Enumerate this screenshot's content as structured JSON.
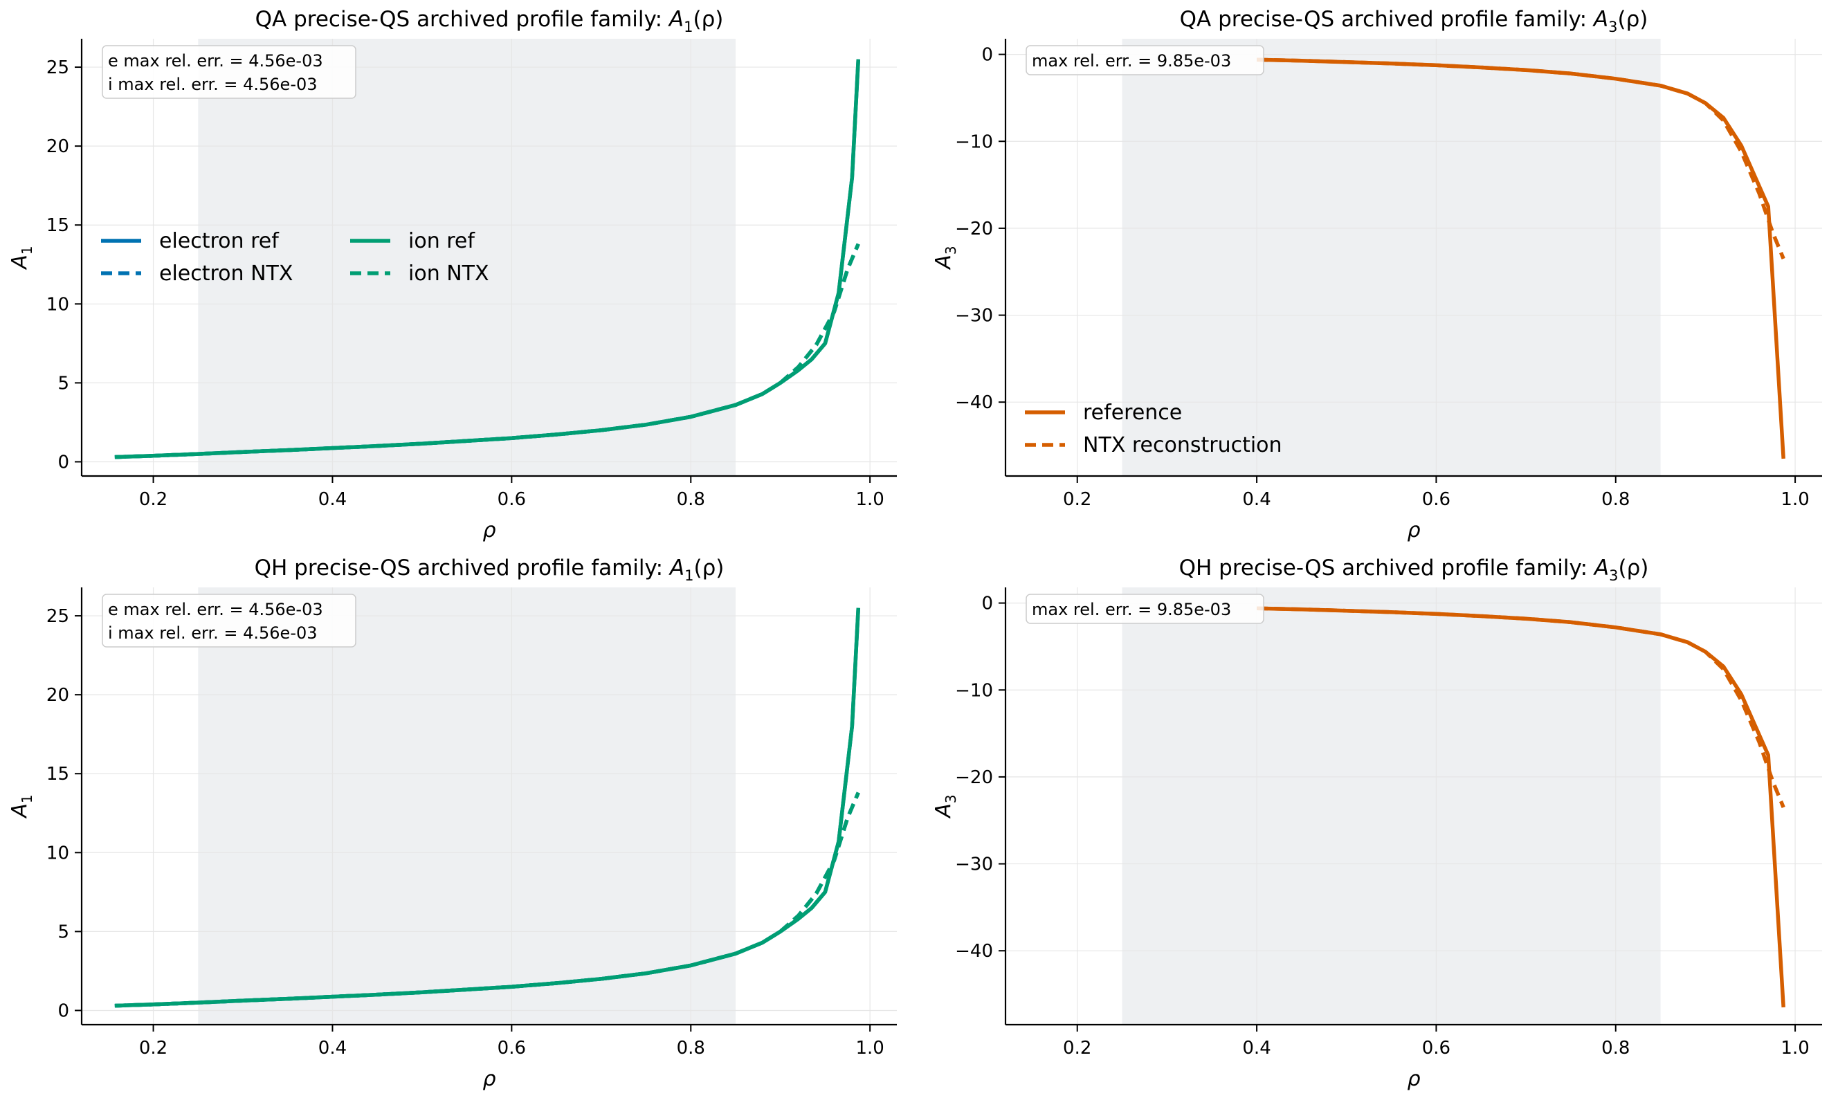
{
  "colors": {
    "electron": "#0072b2",
    "ion": "#009e73",
    "a3": "#d55e00",
    "span": "#eef0f2",
    "grid": "#e6e6e6",
    "axis": "#000000"
  },
  "chart_data": [
    {
      "type": "line",
      "title_main": "QA precise-QS archived profile family: ",
      "title_math": "A",
      "title_sub": "1",
      "title_tail": "(ρ)",
      "xlabel": "ρ",
      "ylabel": "A",
      "ylabel_sub": "1",
      "xlim": [
        0.12,
        1.03
      ],
      "ylim": [
        -0.9,
        26.8
      ],
      "xticks": [
        0.2,
        0.4,
        0.6,
        0.8,
        1.0
      ],
      "xtick_labels": [
        "0.2",
        "0.4",
        "0.6",
        "0.8",
        "1.0"
      ],
      "yticks": [
        0,
        5,
        10,
        15,
        20,
        25
      ],
      "ytick_labels": [
        "0",
        "5",
        "10",
        "15",
        "20",
        "25"
      ],
      "shaded_x": [
        0.25,
        0.85
      ],
      "grid": true,
      "annotation": [
        "e max rel. err. = 4.56e-03",
        "i max rel. err. = 4.56e-03"
      ],
      "legend": {
        "placement": "center-left",
        "entries": [
          {
            "label": "electron ref",
            "series": "electron ref"
          },
          {
            "label": "electron NTX",
            "series": "electron NTX"
          },
          {
            "label": "ion ref",
            "series": "ion ref"
          },
          {
            "label": "ion NTX",
            "series": "ion NTX"
          }
        ]
      },
      "series": [
        {
          "name": "electron ref",
          "color": "#0072b2",
          "dash": false,
          "x": [
            0.157,
            0.2,
            0.25,
            0.3,
            0.35,
            0.4,
            0.45,
            0.5,
            0.55,
            0.6,
            0.65,
            0.7,
            0.75,
            0.8,
            0.85,
            0.88,
            0.9,
            0.92,
            0.935,
            0.95,
            0.965,
            0.98,
            0.987
          ],
          "y": [
            0.3,
            0.38,
            0.5,
            0.62,
            0.74,
            0.87,
            1.0,
            1.15,
            1.32,
            1.5,
            1.73,
            2.0,
            2.35,
            2.85,
            3.6,
            4.3,
            5.0,
            5.8,
            6.5,
            7.5,
            10.7,
            18.0,
            25.5
          ]
        },
        {
          "name": "electron NTX",
          "color": "#0072b2",
          "dash": true,
          "x": [
            0.157,
            0.2,
            0.25,
            0.3,
            0.35,
            0.4,
            0.45,
            0.5,
            0.55,
            0.6,
            0.65,
            0.7,
            0.75,
            0.8,
            0.85,
            0.88,
            0.9,
            0.92,
            0.94,
            0.96,
            0.975,
            0.987
          ],
          "y": [
            0.3,
            0.38,
            0.5,
            0.62,
            0.74,
            0.87,
            1.0,
            1.15,
            1.32,
            1.5,
            1.73,
            2.0,
            2.35,
            2.85,
            3.6,
            4.3,
            5.0,
            6.0,
            7.4,
            9.5,
            12.2,
            13.8
          ]
        },
        {
          "name": "ion ref",
          "color": "#009e73",
          "dash": false,
          "x": [
            0.157,
            0.2,
            0.25,
            0.3,
            0.35,
            0.4,
            0.45,
            0.5,
            0.55,
            0.6,
            0.65,
            0.7,
            0.75,
            0.8,
            0.85,
            0.88,
            0.9,
            0.92,
            0.935,
            0.95,
            0.965,
            0.98,
            0.987
          ],
          "y": [
            0.3,
            0.38,
            0.5,
            0.62,
            0.74,
            0.87,
            1.0,
            1.15,
            1.32,
            1.5,
            1.73,
            2.0,
            2.35,
            2.85,
            3.6,
            4.3,
            5.0,
            5.8,
            6.5,
            7.5,
            10.7,
            18.0,
            25.5
          ]
        },
        {
          "name": "ion NTX",
          "color": "#009e73",
          "dash": true,
          "x": [
            0.157,
            0.2,
            0.25,
            0.3,
            0.35,
            0.4,
            0.45,
            0.5,
            0.55,
            0.6,
            0.65,
            0.7,
            0.75,
            0.8,
            0.85,
            0.88,
            0.9,
            0.92,
            0.94,
            0.96,
            0.975,
            0.987
          ],
          "y": [
            0.3,
            0.38,
            0.5,
            0.62,
            0.74,
            0.87,
            1.0,
            1.15,
            1.32,
            1.5,
            1.73,
            2.0,
            2.35,
            2.85,
            3.6,
            4.3,
            5.0,
            6.0,
            7.4,
            9.5,
            12.2,
            13.8
          ]
        }
      ]
    },
    {
      "type": "line",
      "title_main": "QA precise-QS archived profile family: ",
      "title_math": "A",
      "title_sub": "3",
      "title_tail": "(ρ)",
      "xlabel": "ρ",
      "ylabel": "A",
      "ylabel_sub": "3",
      "xlim": [
        0.12,
        1.03
      ],
      "ylim": [
        -48.5,
        1.8
      ],
      "xticks": [
        0.2,
        0.4,
        0.6,
        0.8,
        1.0
      ],
      "xtick_labels": [
        "0.2",
        "0.4",
        "0.6",
        "0.8",
        "1.0"
      ],
      "yticks": [
        0,
        -10,
        -20,
        -30,
        -40
      ],
      "ytick_labels": [
        "0",
        "−10",
        "−20",
        "−30",
        "−40"
      ],
      "shaded_x": [
        0.25,
        0.85
      ],
      "grid": true,
      "annotation": [
        "max rel. err. = 9.85e-03"
      ],
      "legend": {
        "placement": "lower-left",
        "entries": [
          {
            "label": "reference",
            "series": "reference"
          },
          {
            "label": "NTX reconstruction",
            "series": "NTX reconstruction"
          }
        ]
      },
      "series": [
        {
          "name": "reference",
          "color": "#d55e00",
          "dash": false,
          "x": [
            0.4,
            0.45,
            0.5,
            0.55,
            0.6,
            0.65,
            0.7,
            0.75,
            0.8,
            0.85,
            0.88,
            0.9,
            0.92,
            0.94,
            0.955,
            0.97,
            0.987
          ],
          "y": [
            -0.6,
            -0.72,
            -0.88,
            -1.05,
            -1.25,
            -1.5,
            -1.8,
            -2.2,
            -2.8,
            -3.6,
            -4.5,
            -5.6,
            -7.3,
            -10.5,
            -14.0,
            -17.5,
            -46.5
          ]
        },
        {
          "name": "NTX reconstruction",
          "color": "#d55e00",
          "dash": true,
          "x": [
            0.4,
            0.45,
            0.5,
            0.55,
            0.6,
            0.65,
            0.7,
            0.75,
            0.8,
            0.85,
            0.88,
            0.9,
            0.92,
            0.94,
            0.96,
            0.975,
            0.987
          ],
          "y": [
            -0.6,
            -0.72,
            -0.88,
            -1.05,
            -1.25,
            -1.5,
            -1.8,
            -2.2,
            -2.8,
            -3.6,
            -4.5,
            -5.6,
            -7.6,
            -11.2,
            -16.0,
            -20.5,
            -23.5
          ]
        }
      ]
    },
    {
      "type": "line",
      "title_main": "QH precise-QS archived profile family: ",
      "title_math": "A",
      "title_sub": "1",
      "title_tail": "(ρ)",
      "xlabel": "ρ",
      "ylabel": "A",
      "ylabel_sub": "1",
      "xlim": [
        0.12,
        1.03
      ],
      "ylim": [
        -0.9,
        26.8
      ],
      "xticks": [
        0.2,
        0.4,
        0.6,
        0.8,
        1.0
      ],
      "xtick_labels": [
        "0.2",
        "0.4",
        "0.6",
        "0.8",
        "1.0"
      ],
      "yticks": [
        0,
        5,
        10,
        15,
        20,
        25
      ],
      "ytick_labels": [
        "0",
        "5",
        "10",
        "15",
        "20",
        "25"
      ],
      "shaded_x": [
        0.25,
        0.85
      ],
      "grid": true,
      "annotation": [
        "e max rel. err. = 4.56e-03",
        "i max rel. err. = 4.56e-03"
      ],
      "legend": null,
      "series": [
        {
          "name": "electron ref",
          "color": "#0072b2",
          "dash": false,
          "x": [
            0.157,
            0.2,
            0.25,
            0.3,
            0.35,
            0.4,
            0.45,
            0.5,
            0.55,
            0.6,
            0.65,
            0.7,
            0.75,
            0.8,
            0.85,
            0.88,
            0.9,
            0.92,
            0.935,
            0.95,
            0.965,
            0.98,
            0.987
          ],
          "y": [
            0.3,
            0.38,
            0.5,
            0.62,
            0.74,
            0.87,
            1.0,
            1.15,
            1.32,
            1.5,
            1.73,
            2.0,
            2.35,
            2.85,
            3.6,
            4.3,
            5.0,
            5.8,
            6.5,
            7.5,
            10.7,
            18.0,
            25.5
          ]
        },
        {
          "name": "electron NTX",
          "color": "#0072b2",
          "dash": true,
          "x": [
            0.157,
            0.2,
            0.25,
            0.3,
            0.35,
            0.4,
            0.45,
            0.5,
            0.55,
            0.6,
            0.65,
            0.7,
            0.75,
            0.8,
            0.85,
            0.88,
            0.9,
            0.92,
            0.94,
            0.96,
            0.975,
            0.987
          ],
          "y": [
            0.3,
            0.38,
            0.5,
            0.62,
            0.74,
            0.87,
            1.0,
            1.15,
            1.32,
            1.5,
            1.73,
            2.0,
            2.35,
            2.85,
            3.6,
            4.3,
            5.0,
            6.0,
            7.4,
            9.5,
            12.2,
            13.8
          ]
        },
        {
          "name": "ion ref",
          "color": "#009e73",
          "dash": false,
          "x": [
            0.157,
            0.2,
            0.25,
            0.3,
            0.35,
            0.4,
            0.45,
            0.5,
            0.55,
            0.6,
            0.65,
            0.7,
            0.75,
            0.8,
            0.85,
            0.88,
            0.9,
            0.92,
            0.935,
            0.95,
            0.965,
            0.98,
            0.987
          ],
          "y": [
            0.3,
            0.38,
            0.5,
            0.62,
            0.74,
            0.87,
            1.0,
            1.15,
            1.32,
            1.5,
            1.73,
            2.0,
            2.35,
            2.85,
            3.6,
            4.3,
            5.0,
            5.8,
            6.5,
            7.5,
            10.7,
            18.0,
            25.5
          ]
        },
        {
          "name": "ion NTX",
          "color": "#009e73",
          "dash": true,
          "x": [
            0.157,
            0.2,
            0.25,
            0.3,
            0.35,
            0.4,
            0.45,
            0.5,
            0.55,
            0.6,
            0.65,
            0.7,
            0.75,
            0.8,
            0.85,
            0.88,
            0.9,
            0.92,
            0.94,
            0.96,
            0.975,
            0.987
          ],
          "y": [
            0.3,
            0.38,
            0.5,
            0.62,
            0.74,
            0.87,
            1.0,
            1.15,
            1.32,
            1.5,
            1.73,
            2.0,
            2.35,
            2.85,
            3.6,
            4.3,
            5.0,
            6.0,
            7.4,
            9.5,
            12.2,
            13.8
          ]
        }
      ]
    },
    {
      "type": "line",
      "title_main": "QH precise-QS archived profile family: ",
      "title_math": "A",
      "title_sub": "3",
      "title_tail": "(ρ)",
      "xlabel": "ρ",
      "ylabel": "A",
      "ylabel_sub": "3",
      "xlim": [
        0.12,
        1.03
      ],
      "ylim": [
        -48.5,
        1.8
      ],
      "xticks": [
        0.2,
        0.4,
        0.6,
        0.8,
        1.0
      ],
      "xtick_labels": [
        "0.2",
        "0.4",
        "0.6",
        "0.8",
        "1.0"
      ],
      "yticks": [
        0,
        -10,
        -20,
        -30,
        -40
      ],
      "ytick_labels": [
        "0",
        "−10",
        "−20",
        "−30",
        "−40"
      ],
      "shaded_x": [
        0.25,
        0.85
      ],
      "grid": true,
      "annotation": [
        "max rel. err. = 9.85e-03"
      ],
      "legend": null,
      "series": [
        {
          "name": "reference",
          "color": "#d55e00",
          "dash": false,
          "x": [
            0.4,
            0.45,
            0.5,
            0.55,
            0.6,
            0.65,
            0.7,
            0.75,
            0.8,
            0.85,
            0.88,
            0.9,
            0.92,
            0.94,
            0.955,
            0.97,
            0.987
          ],
          "y": [
            -0.6,
            -0.72,
            -0.88,
            -1.05,
            -1.25,
            -1.5,
            -1.8,
            -2.2,
            -2.8,
            -3.6,
            -4.5,
            -5.6,
            -7.3,
            -10.5,
            -14.0,
            -17.5,
            -46.5
          ]
        },
        {
          "name": "NTX reconstruction",
          "color": "#d55e00",
          "dash": true,
          "x": [
            0.4,
            0.45,
            0.5,
            0.55,
            0.6,
            0.65,
            0.7,
            0.75,
            0.8,
            0.85,
            0.88,
            0.9,
            0.92,
            0.94,
            0.96,
            0.975,
            0.987
          ],
          "y": [
            -0.6,
            -0.72,
            -0.88,
            -1.05,
            -1.25,
            -1.5,
            -1.8,
            -2.2,
            -2.8,
            -3.6,
            -4.5,
            -5.6,
            -7.6,
            -11.2,
            -16.0,
            -20.5,
            -23.5
          ]
        }
      ]
    }
  ]
}
